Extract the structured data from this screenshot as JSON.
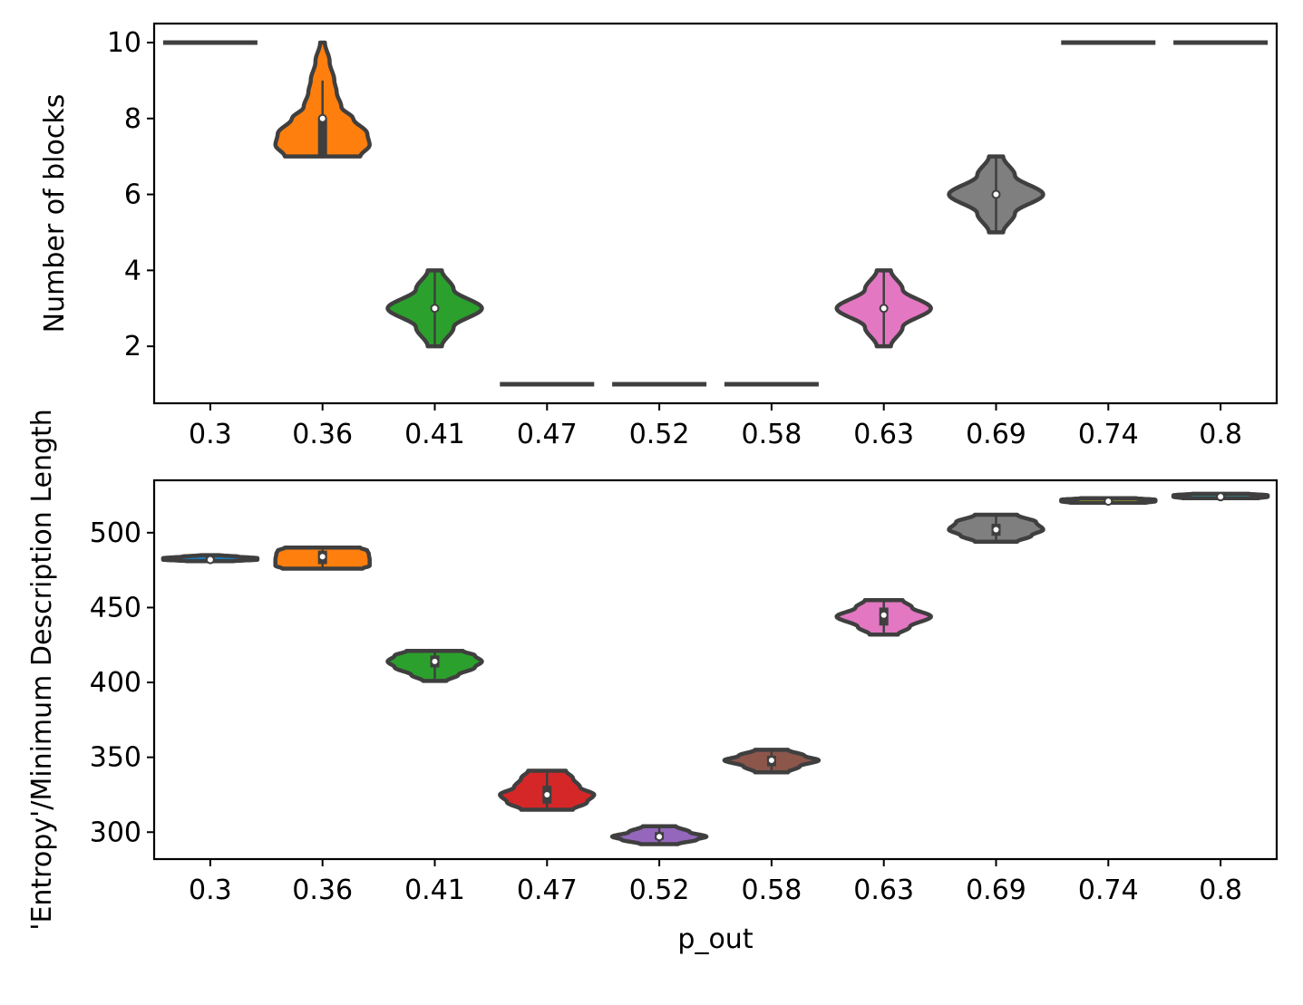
{
  "chart_data": [
    {
      "type": "violin",
      "title": "",
      "xlabel": "",
      "ylabel": "Number of blocks",
      "categories": [
        "0.3",
        "0.36",
        "0.41",
        "0.47",
        "0.52",
        "0.58",
        "0.63",
        "0.69",
        "0.74",
        "0.8"
      ],
      "ylim": [
        0.5,
        10.5
      ],
      "yticks": [
        "2",
        "4",
        "6",
        "8",
        "10"
      ],
      "grid": false,
      "violins": [
        {
          "category": "0.3",
          "color": "#1f77b4",
          "min": 10,
          "max": 10,
          "median": 10,
          "q1": 10,
          "q3": 10,
          "constant": true
        },
        {
          "category": "0.36",
          "color": "#ff7f0e",
          "min": 7,
          "max": 10,
          "median": 8,
          "q1": 7,
          "q3": 8,
          "whisker_high": 9,
          "profile": [
            [
              7,
              0.8
            ],
            [
              7.3,
              1.0
            ],
            [
              7.6,
              0.95
            ],
            [
              8,
              0.65
            ],
            [
              8.3,
              0.4
            ],
            [
              8.7,
              0.3
            ],
            [
              9,
              0.25
            ],
            [
              9.5,
              0.15
            ],
            [
              10,
              0.05
            ]
          ]
        },
        {
          "category": "0.41",
          "color": "#2ca02c",
          "min": 2,
          "max": 4,
          "median": 3,
          "q1": 3,
          "q3": 3,
          "profile": [
            [
              2,
              0.15
            ],
            [
              2.5,
              0.4
            ],
            [
              3,
              1.0
            ],
            [
              3.5,
              0.4
            ],
            [
              4,
              0.15
            ]
          ]
        },
        {
          "category": "0.47",
          "color": "#d62728",
          "min": 1,
          "max": 1,
          "median": 1,
          "q1": 1,
          "q3": 1,
          "constant": true
        },
        {
          "category": "0.52",
          "color": "#9467bd",
          "min": 1,
          "max": 1,
          "median": 1,
          "q1": 1,
          "q3": 1,
          "constant": true
        },
        {
          "category": "0.58",
          "color": "#8c564b",
          "min": 1,
          "max": 1,
          "median": 1,
          "q1": 1,
          "q3": 1,
          "constant": true
        },
        {
          "category": "0.63",
          "color": "#e377c2",
          "min": 2,
          "max": 4,
          "median": 3,
          "q1": 3,
          "q3": 3,
          "profile": [
            [
              2,
              0.15
            ],
            [
              2.5,
              0.4
            ],
            [
              3,
              1.0
            ],
            [
              3.5,
              0.4
            ],
            [
              4,
              0.15
            ]
          ]
        },
        {
          "category": "0.69",
          "color": "#7f7f7f",
          "min": 5,
          "max": 7,
          "median": 6,
          "q1": 6,
          "q3": 6,
          "profile": [
            [
              5,
              0.15
            ],
            [
              5.5,
              0.4
            ],
            [
              6,
              1.0
            ],
            [
              6.5,
              0.4
            ],
            [
              7,
              0.15
            ]
          ]
        },
        {
          "category": "0.74",
          "color": "#bcbd22",
          "min": 10,
          "max": 10,
          "median": 10,
          "q1": 10,
          "q3": 10,
          "constant": true
        },
        {
          "category": "0.8",
          "color": "#17becf",
          "min": 10,
          "max": 10,
          "median": 10,
          "q1": 10,
          "q3": 10,
          "constant": true
        }
      ]
    },
    {
      "type": "violin",
      "title": "",
      "xlabel": "p_out",
      "ylabel": "'Entropy'/Minimum Description Length",
      "categories": [
        "0.3",
        "0.36",
        "0.41",
        "0.47",
        "0.52",
        "0.58",
        "0.63",
        "0.69",
        "0.74",
        "0.8"
      ],
      "ylim": [
        282,
        535
      ],
      "yticks": [
        "300",
        "350",
        "400",
        "450",
        "500"
      ],
      "grid": false,
      "violins": [
        {
          "category": "0.3",
          "color": "#1f77b4",
          "min": 481,
          "max": 485,
          "median": 482,
          "q1": 481,
          "q3": 484,
          "profile": [
            [
              481,
              0.5
            ],
            [
              482,
              1.0
            ],
            [
              483,
              1.0
            ],
            [
              484,
              0.6
            ],
            [
              485,
              0.2
            ]
          ]
        },
        {
          "category": "0.36",
          "color": "#ff7f0e",
          "min": 476,
          "max": 490,
          "median": 484,
          "q1": 479,
          "q3": 488,
          "profile": [
            [
              476,
              0.85
            ],
            [
              478,
              1.0
            ],
            [
              482,
              1.0
            ],
            [
              486,
              0.98
            ],
            [
              488,
              0.95
            ],
            [
              490,
              0.8
            ]
          ]
        },
        {
          "category": "0.41",
          "color": "#2ca02c",
          "min": 401,
          "max": 421,
          "median": 414,
          "q1": 410,
          "q3": 418,
          "profile": [
            [
              401,
              0.25
            ],
            [
              405,
              0.5
            ],
            [
              410,
              0.85
            ],
            [
              414,
              1.0
            ],
            [
              418,
              0.85
            ],
            [
              421,
              0.6
            ]
          ]
        },
        {
          "category": "0.47",
          "color": "#d62728",
          "min": 315,
          "max": 341,
          "median": 325,
          "q1": 319,
          "q3": 331,
          "profile": [
            [
              315,
              0.55
            ],
            [
              320,
              0.85
            ],
            [
              325,
              1.0
            ],
            [
              330,
              0.7
            ],
            [
              336,
              0.55
            ],
            [
              341,
              0.4
            ]
          ]
        },
        {
          "category": "0.52",
          "color": "#9467bd",
          "min": 292,
          "max": 304,
          "median": 297,
          "q1": 295,
          "q3": 300,
          "profile": [
            [
              292,
              0.4
            ],
            [
              295,
              0.8
            ],
            [
              297,
              1.0
            ],
            [
              300,
              0.65
            ],
            [
              304,
              0.35
            ]
          ]
        },
        {
          "category": "0.58",
          "color": "#8c564b",
          "min": 340,
          "max": 355,
          "median": 348,
          "q1": 344,
          "q3": 351,
          "profile": [
            [
              340,
              0.35
            ],
            [
              344,
              0.6
            ],
            [
              348,
              1.0
            ],
            [
              351,
              0.7
            ],
            [
              355,
              0.35
            ]
          ]
        },
        {
          "category": "0.63",
          "color": "#e377c2",
          "min": 432,
          "max": 455,
          "median": 445,
          "q1": 438,
          "q3": 450,
          "profile": [
            [
              432,
              0.3
            ],
            [
              437,
              0.55
            ],
            [
              444,
              1.0
            ],
            [
              450,
              0.6
            ],
            [
              455,
              0.4
            ]
          ]
        },
        {
          "category": "0.69",
          "color": "#7f7f7f",
          "min": 494,
          "max": 512,
          "median": 502,
          "q1": 498,
          "q3": 506,
          "profile": [
            [
              494,
              0.45
            ],
            [
              498,
              0.75
            ],
            [
              502,
              1.0
            ],
            [
              507,
              0.85
            ],
            [
              512,
              0.45
            ]
          ]
        },
        {
          "category": "0.74",
          "color": "#bcbd22",
          "min": 520,
          "max": 523,
          "median": 521,
          "q1": 520,
          "q3": 523,
          "profile": [
            [
              520,
              0.8
            ],
            [
              521,
              1.0
            ],
            [
              522,
              1.0
            ],
            [
              523,
              0.6
            ]
          ]
        },
        {
          "category": "0.8",
          "color": "#17becf",
          "min": 523,
          "max": 526,
          "median": 524,
          "q1": 523,
          "q3": 526,
          "profile": [
            [
              523,
              0.8
            ],
            [
              524,
              1.0
            ],
            [
              525,
              1.0
            ],
            [
              526,
              0.6
            ]
          ]
        }
      ]
    }
  ]
}
